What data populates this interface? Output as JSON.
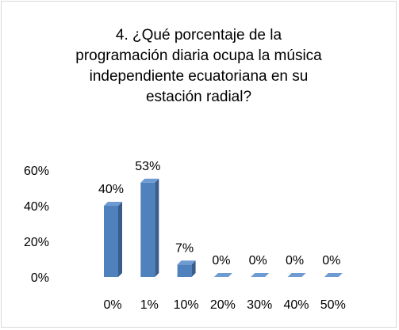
{
  "chart_data": {
    "type": "bar3d",
    "title": "4. ¿Qué porcentaje de la programación diaria ocupa la música independiente ecuatoriana en su estación radial?",
    "categories": [
      "0%",
      "1%",
      "10%",
      "20%",
      "30%",
      "40%",
      "50%"
    ],
    "values": [
      40,
      53,
      7,
      0,
      0,
      0,
      0
    ],
    "value_labels": [
      "40%",
      "53%",
      "7%",
      "0%",
      "0%",
      "0%",
      "0%"
    ],
    "color": "#4f81bd",
    "ylim": [
      0,
      60
    ],
    "yticks": [
      {
        "value": 0,
        "label": "0%"
      },
      {
        "value": 20,
        "label": "20%"
      },
      {
        "value": 40,
        "label": "40%"
      },
      {
        "value": 60,
        "label": "60%"
      }
    ],
    "grid": false
  }
}
